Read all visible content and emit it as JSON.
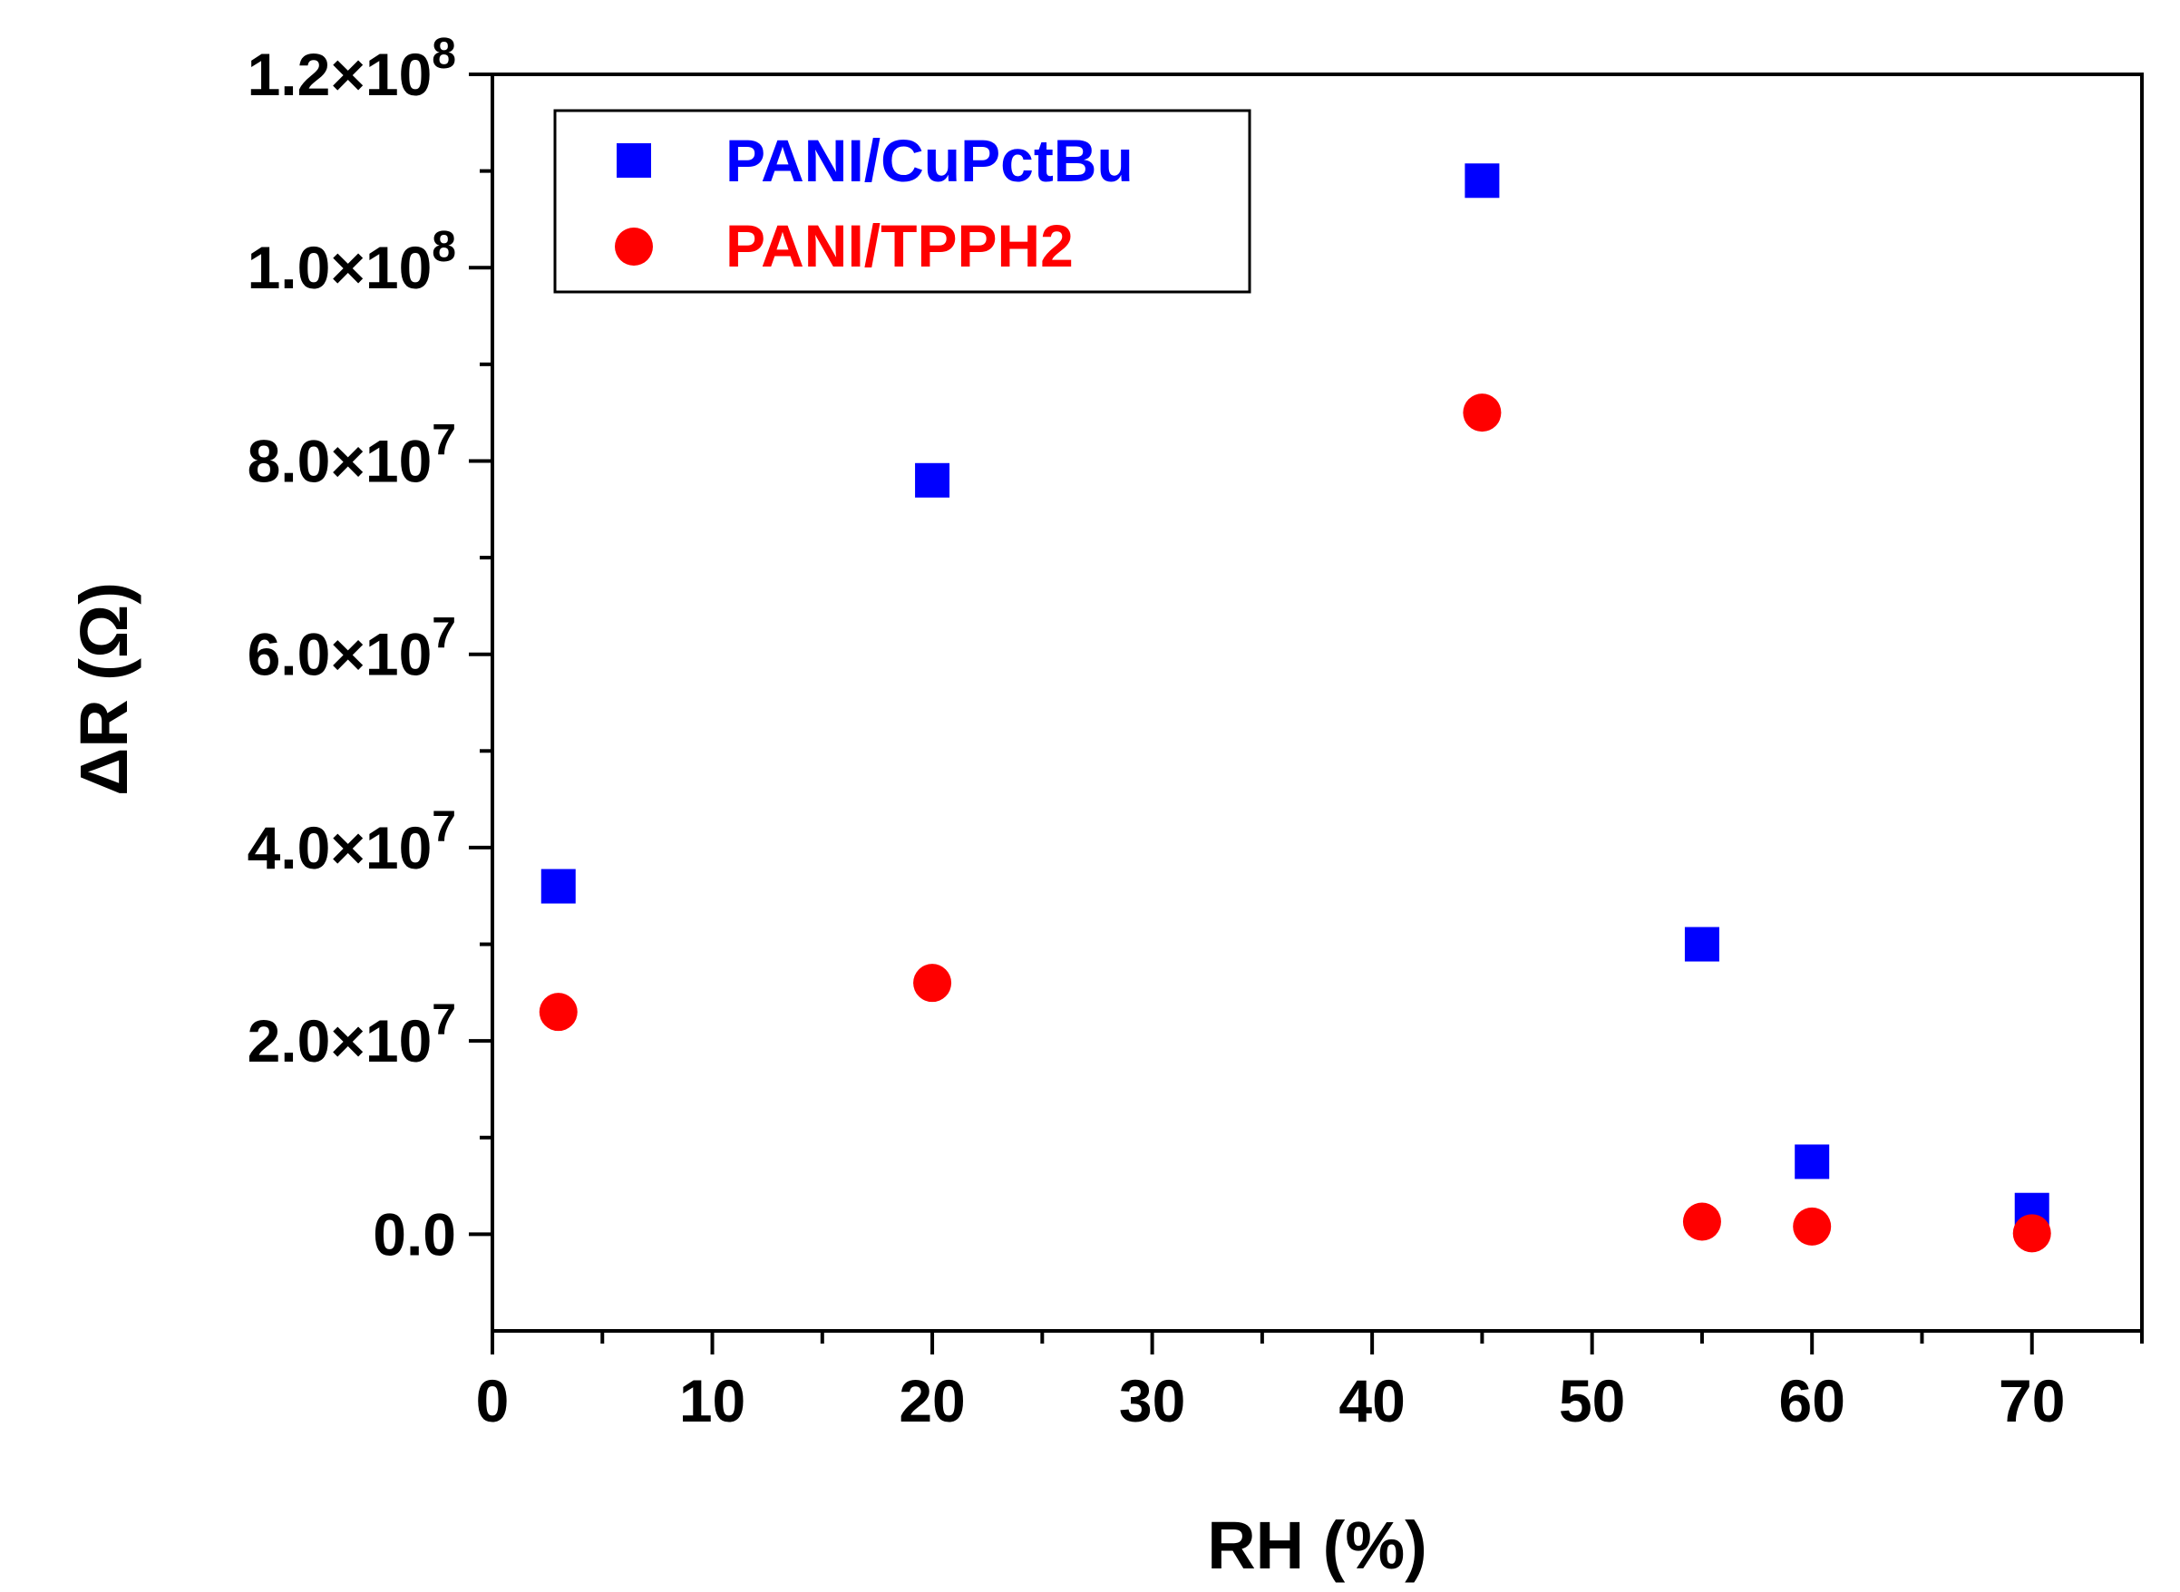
{
  "chart_data": {
    "type": "scatter",
    "title": "",
    "xlabel": "RH (%)",
    "ylabel": "ΔR (Ω)",
    "xlim": [
      0,
      75
    ],
    "ylim": [
      -10000000,
      120000000
    ],
    "x_ticks": [
      0,
      10,
      20,
      30,
      40,
      50,
      60,
      70
    ],
    "x_tick_labels": [
      "0",
      "10",
      "20",
      "30",
      "40",
      "50",
      "60",
      "70"
    ],
    "y_ticks": [
      0,
      20000000,
      40000000,
      60000000,
      80000000,
      100000000,
      120000000
    ],
    "y_tick_labels": [
      {
        "mantissa": "0.0",
        "exponent": ""
      },
      {
        "mantissa": "2.0×10",
        "exponent": "7"
      },
      {
        "mantissa": "4.0×10",
        "exponent": "7"
      },
      {
        "mantissa": "6.0×10",
        "exponent": "7"
      },
      {
        "mantissa": "8.0×10",
        "exponent": "7"
      },
      {
        "mantissa": "1.0×10",
        "exponent": "8"
      },
      {
        "mantissa": "1.2×10",
        "exponent": "8"
      }
    ],
    "grid": false,
    "legend_position": "top-left",
    "series": [
      {
        "name": "PANI/CuPctBu",
        "marker": "square",
        "color": "#0000ff",
        "x": [
          3,
          20,
          45,
          55,
          60,
          70
        ],
        "y": [
          36000000,
          78000000,
          109000000,
          30000000,
          7500000,
          2500000
        ]
      },
      {
        "name": "PANI/TPPH2",
        "marker": "circle",
        "color": "#ff0000",
        "x": [
          3,
          20,
          45,
          55,
          60,
          70
        ],
        "y": [
          23000000,
          26000000,
          85000000,
          1300000,
          800000,
          100000
        ]
      }
    ]
  }
}
